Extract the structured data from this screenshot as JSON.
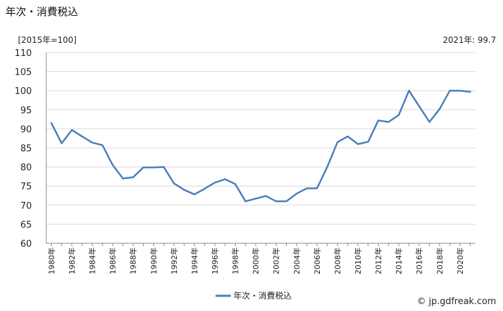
{
  "header": {
    "title": "年次・消費税込",
    "unit": "[2015年=100]",
    "latest": "2021年: 99.7"
  },
  "footer": {
    "credit": "© jp.gdfreak.com"
  },
  "colors": {
    "line": "#4a7ebb",
    "grid": "#d9d9d9",
    "axis": "#888888"
  },
  "chart_data": {
    "type": "line",
    "title": "年次・消費税込",
    "ylabel": "",
    "xlabel": "",
    "ylim": [
      60,
      110
    ],
    "yticks": [
      60,
      65,
      70,
      75,
      80,
      85,
      90,
      95,
      100,
      105,
      110
    ],
    "xtick_labels": [
      "1980年",
      "1982年",
      "1984年",
      "1986年",
      "1988年",
      "1990年",
      "1992年",
      "1994年",
      "1996年",
      "1998年",
      "2000年",
      "2002年",
      "2004年",
      "2006年",
      "2008年",
      "2010年",
      "2012年",
      "2014年",
      "2016年",
      "2018年",
      "2020年"
    ],
    "grid": true,
    "legend": "bottom",
    "x": [
      1980,
      1981,
      1982,
      1983,
      1984,
      1985,
      1986,
      1987,
      1988,
      1989,
      1990,
      1991,
      1992,
      1993,
      1994,
      1995,
      1996,
      1997,
      1998,
      1999,
      2000,
      2001,
      2002,
      2003,
      2004,
      2005,
      2006,
      2007,
      2008,
      2009,
      2010,
      2011,
      2012,
      2013,
      2014,
      2015,
      2016,
      2017,
      2018,
      2019,
      2020,
      2021
    ],
    "series": [
      {
        "name": "年次・消費税込",
        "values": [
          91.5,
          86.2,
          89.7,
          88.0,
          86.4,
          85.7,
          80.5,
          77.0,
          77.3,
          79.9,
          79.9,
          80.0,
          75.7,
          74.0,
          72.8,
          74.3,
          75.9,
          76.8,
          75.5,
          71.0,
          71.7,
          72.4,
          71.0,
          71.0,
          73.0,
          74.4,
          74.4,
          80.0,
          86.5,
          88.0,
          86.0,
          86.6,
          92.2,
          91.8,
          93.6,
          100.0,
          95.9,
          91.8,
          95.2,
          100.0,
          100.0,
          99.7
        ]
      }
    ]
  }
}
